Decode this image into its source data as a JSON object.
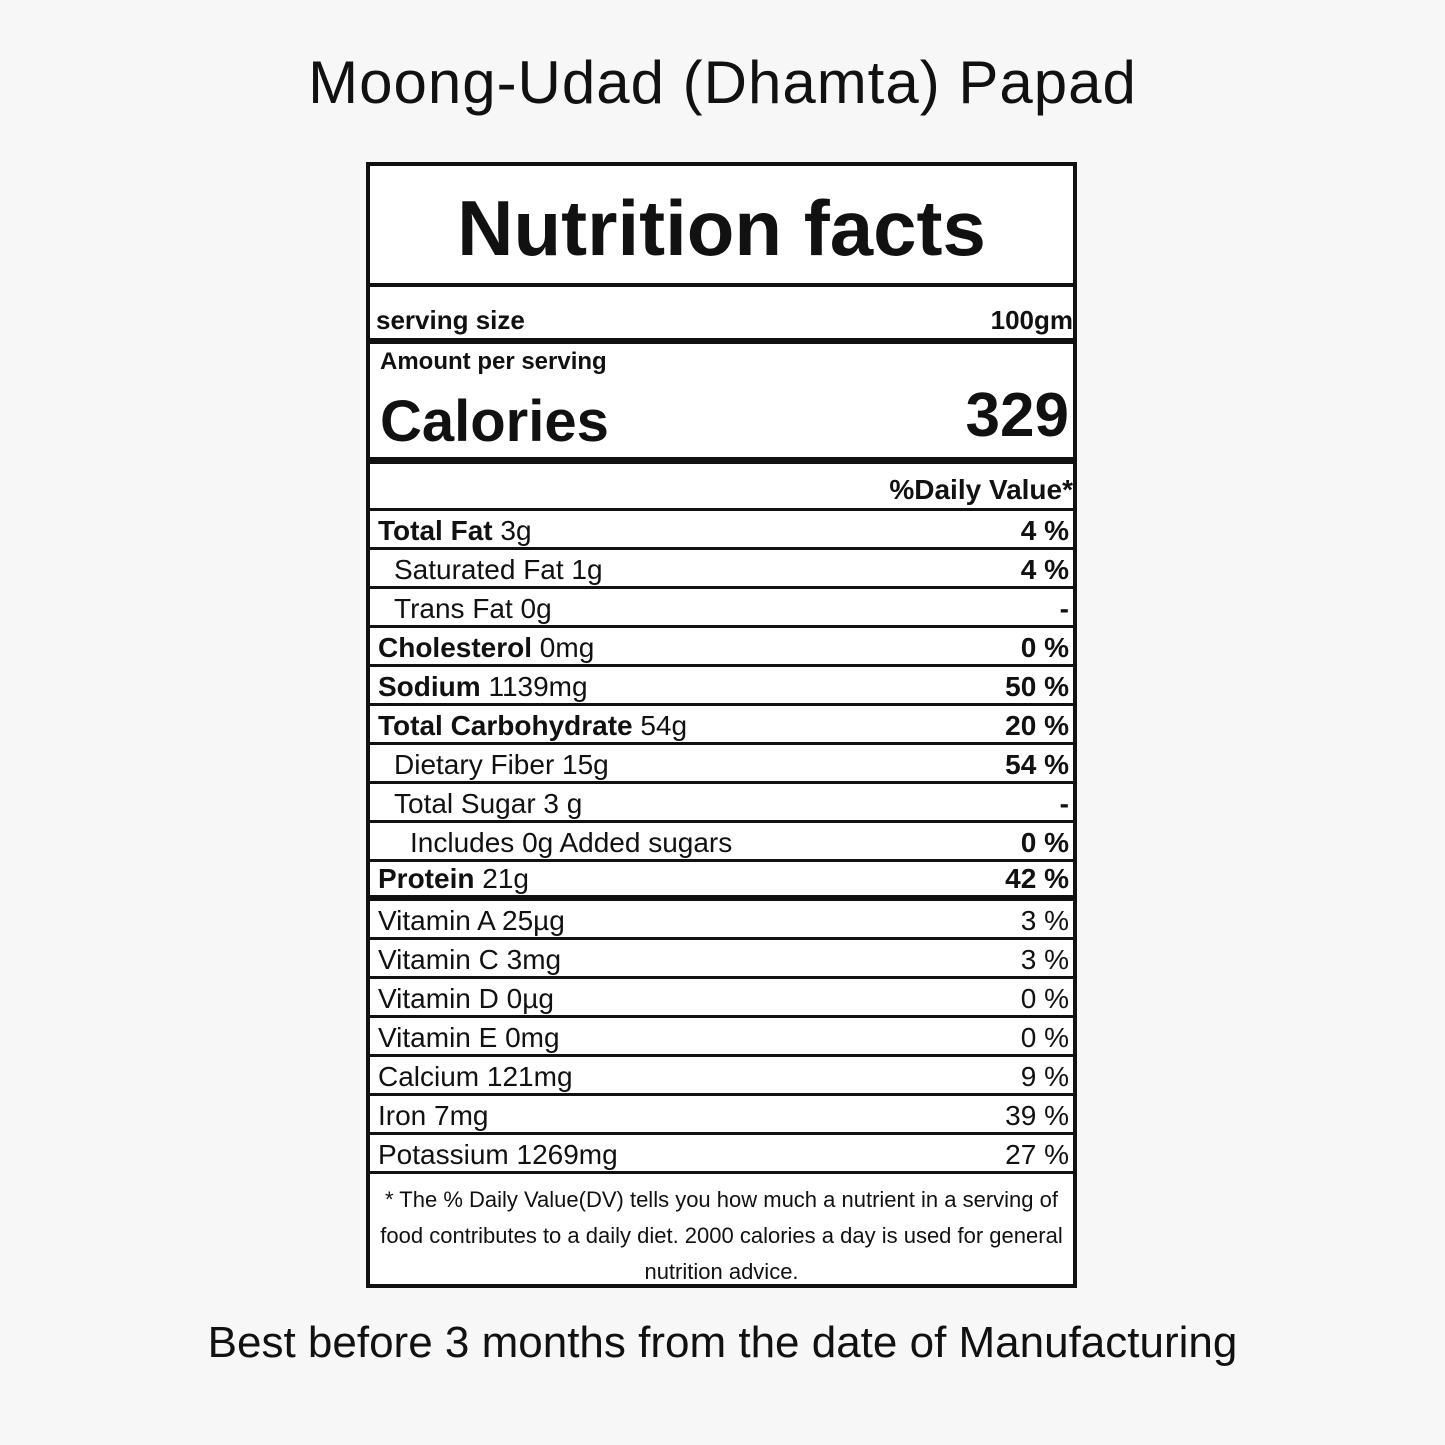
{
  "product_title": "Moong-Udad (Dhamta) Papad",
  "label": {
    "heading": "Nutrition facts",
    "serving_size_label": "serving size",
    "serving_size_value": "100gm",
    "amount_per_serving": "Amount per serving",
    "calories_label": "Calories",
    "calories_value": "329",
    "daily_value_header": "%Daily Value*",
    "rows": [
      {
        "bold": "Total Fat",
        "rest": " 3g",
        "dv": "4 %"
      },
      {
        "bold": "",
        "rest": "Saturated Fat 1g",
        "dv": "4 %"
      },
      {
        "bold": "",
        "rest": "Trans Fat 0g",
        "dv": "-"
      },
      {
        "bold": "Cholesterol",
        "rest": " 0mg",
        "dv": "0 %"
      },
      {
        "bold": "Sodium",
        "rest": " 1139mg",
        "dv": "50 %"
      },
      {
        "bold": "Total Carbohydrate",
        "rest": " 54g",
        "dv": "20 %"
      },
      {
        "bold": "",
        "rest": "Dietary Fiber 15g",
        "dv": "54 %"
      },
      {
        "bold": "",
        "rest": "Total Sugar 3 g",
        "dv": "-"
      },
      {
        "bold": "",
        "rest": "Includes 0g Added sugars",
        "dv": "0 %"
      },
      {
        "bold": "Protein",
        "rest": " 21g",
        "dv": "42 %"
      },
      {
        "bold": "",
        "rest": "Vitamin A 25µg",
        "dv": "3 %"
      },
      {
        "bold": "",
        "rest": "Vitamin C 3mg",
        "dv": "3 %"
      },
      {
        "bold": "",
        "rest": "Vitamin D 0µg",
        "dv": "0 %"
      },
      {
        "bold": "",
        "rest": "Vitamin E 0mg",
        "dv": "0 %"
      },
      {
        "bold": "",
        "rest": "Calcium 121mg",
        "dv": "9 %"
      },
      {
        "bold": "",
        "rest": "Iron 7mg",
        "dv": "39 %"
      },
      {
        "bold": "",
        "rest": "Potassium 1269mg",
        "dv": "27 %"
      }
    ],
    "footnote": "* The %  Daily Value(DV) tells you how much a nutrient in a serving of food contributes to a daily diet. 2000 calories a day is used for general nutrition advice."
  },
  "shelf_life": "Best before 3 months from the date of Manufacturing"
}
